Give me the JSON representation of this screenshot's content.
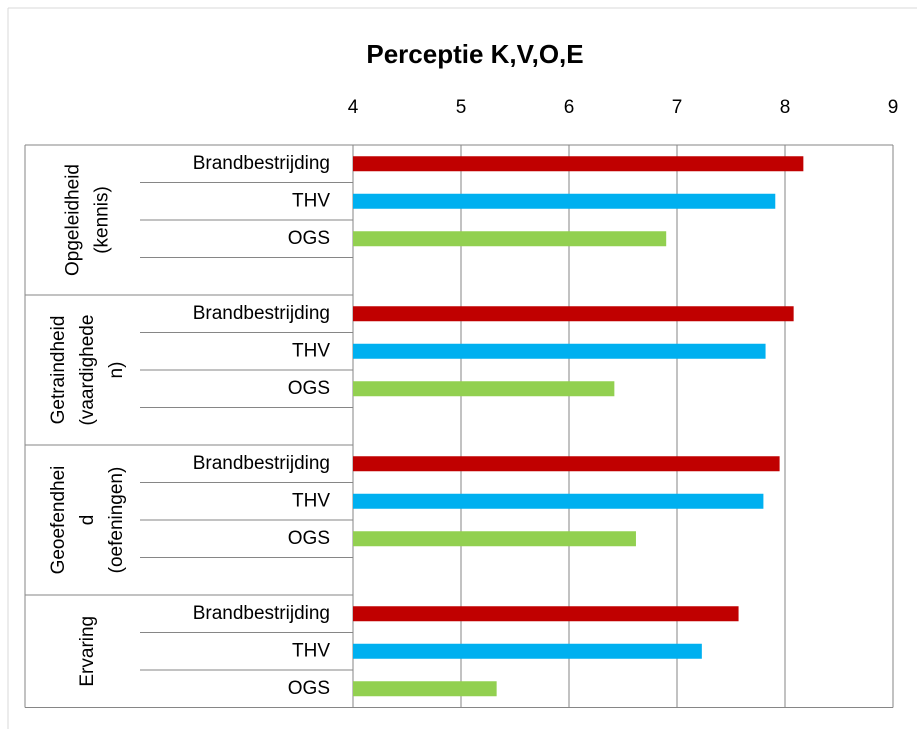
{
  "chart_data": {
    "type": "bar",
    "horizontal": true,
    "title": "Perceptie K,V,O,E",
    "xlim": [
      4,
      9
    ],
    "xticks": [
      4,
      5,
      6,
      7,
      8,
      9
    ],
    "grid": true,
    "colors": [
      "#c00000",
      "#00b0f0",
      "#92d050"
    ],
    "groups": [
      {
        "name": [
          "Opgeleidheid",
          "(kennis)"
        ],
        "categories": [
          "Brandbestrijding",
          "THV",
          "OGS",
          null
        ],
        "values": [
          8.17,
          7.91,
          6.9,
          null
        ]
      },
      {
        "name": [
          "Getraindheid",
          "(vaardighede",
          "n)"
        ],
        "categories": [
          "Brandbestrijding",
          "THV",
          "OGS",
          null
        ],
        "values": [
          8.08,
          7.82,
          6.42,
          null
        ]
      },
      {
        "name": [
          "Geoefendhei",
          "d",
          "(oefeningen)"
        ],
        "categories": [
          "Brandbestrijding",
          "THV",
          "OGS",
          null
        ],
        "values": [
          7.95,
          7.8,
          6.62,
          null
        ]
      },
      {
        "name": [
          "Ervaring"
        ],
        "categories": [
          "Brandbestrijding",
          "THV",
          "OGS"
        ],
        "values": [
          7.57,
          7.23,
          5.33
        ]
      }
    ]
  }
}
